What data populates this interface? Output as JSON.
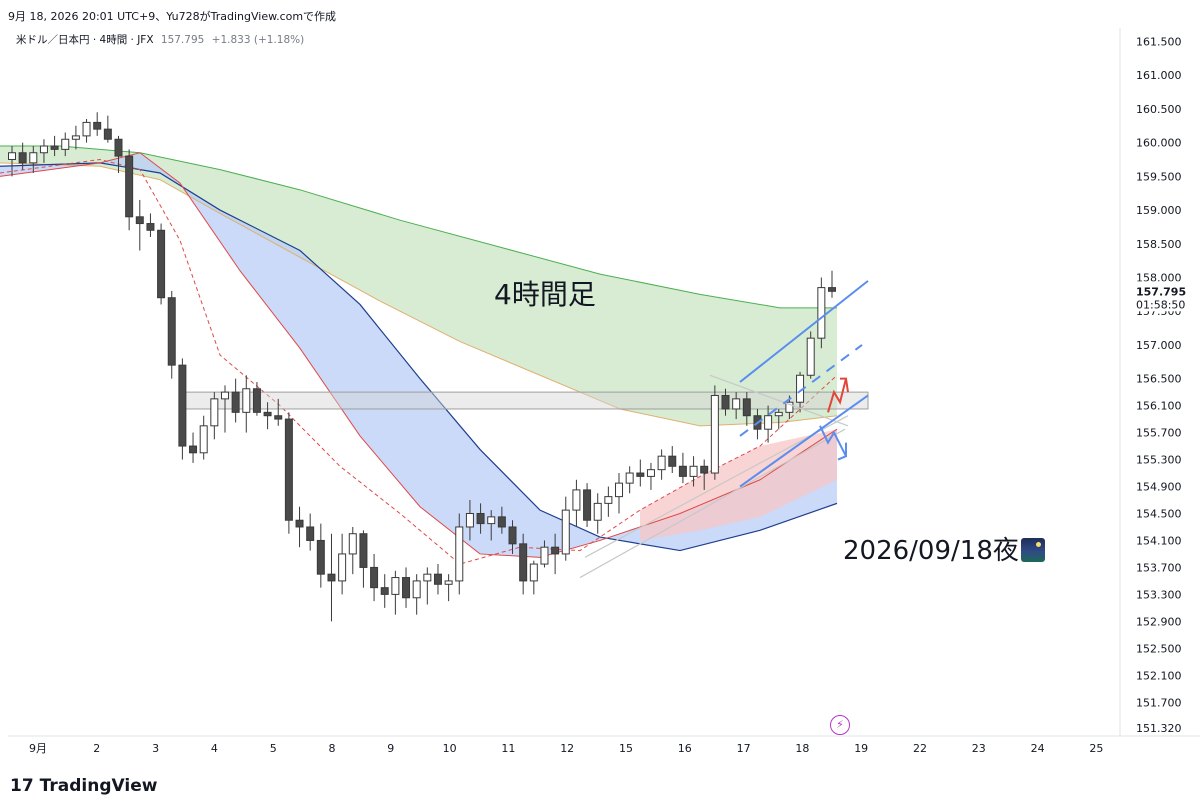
{
  "header": {
    "caption": "9月 18, 2026 20:01 UTC+9、Yu728がTradingView.comで作成"
  },
  "legend": {
    "symbol": "米ドル／日本円 · 4時間 · JFX",
    "last": "157.795",
    "change": "+1.833 (+1.18%)"
  },
  "annotations": {
    "timeframe_label": "4時間足",
    "date_label": "2026/09/18夜",
    "date_icon": "night-city-emoji"
  },
  "price_tag": {
    "price": "157.795",
    "countdown": "01:58:50"
  },
  "branding": {
    "logo_mark": "17",
    "logo_text": "TradingView",
    "flash_icon": "lightning-icon"
  },
  "colors": {
    "up_candle": "#ffffff",
    "down_candle": "#4a4a4a",
    "cloud_green": "#c9e6c4",
    "cloud_blue": "#b9cdf5",
    "cloud_red": "#f7c6c6",
    "trend_blue": "#5b8def",
    "arrow_red": "#e0453a",
    "price_line": "#131722"
  },
  "chart_data": {
    "type": "candlestick",
    "title": "",
    "y_axis_ticks": [
      "161.500",
      "161.000",
      "160.500",
      "160.000",
      "159.500",
      "159.000",
      "158.500",
      "158.000",
      "157.500",
      "157.000",
      "156.500",
      "156.100",
      "155.700",
      "155.300",
      "154.900",
      "154.500",
      "154.100",
      "153.700",
      "153.300",
      "152.900",
      "152.500",
      "152.100",
      "151.700",
      "151.320"
    ],
    "x_axis_ticks": [
      "9月",
      "2",
      "3",
      "4",
      "5",
      "8",
      "9",
      "10",
      "11",
      "12",
      "15",
      "16",
      "17",
      "18",
      "19",
      "22",
      "23",
      "24",
      "25"
    ],
    "ylim": [
      151.2,
      161.7
    ],
    "candles": [
      [
        159.75,
        159.95,
        159.5,
        159.85
      ],
      [
        159.85,
        160.0,
        159.6,
        159.7
      ],
      [
        159.7,
        159.95,
        159.55,
        159.85
      ],
      [
        159.85,
        160.05,
        159.7,
        159.95
      ],
      [
        159.95,
        160.1,
        159.8,
        159.9
      ],
      [
        159.9,
        160.15,
        159.8,
        160.05
      ],
      [
        160.05,
        160.25,
        159.9,
        160.1
      ],
      [
        160.1,
        160.35,
        160.0,
        160.3
      ],
      [
        160.3,
        160.45,
        160.1,
        160.2
      ],
      [
        160.2,
        160.4,
        160.0,
        160.05
      ],
      [
        160.05,
        160.1,
        159.55,
        159.8
      ],
      [
        159.8,
        159.9,
        158.7,
        158.9
      ],
      [
        158.9,
        159.15,
        158.4,
        158.8
      ],
      [
        158.8,
        158.95,
        158.6,
        158.7
      ],
      [
        158.7,
        158.8,
        157.6,
        157.7
      ],
      [
        157.7,
        157.8,
        156.5,
        156.7
      ],
      [
        156.7,
        156.8,
        155.3,
        155.5
      ],
      [
        155.5,
        155.7,
        155.25,
        155.4
      ],
      [
        155.4,
        155.95,
        155.3,
        155.8
      ],
      [
        155.8,
        156.3,
        155.6,
        156.2
      ],
      [
        156.2,
        156.4,
        155.7,
        156.3
      ],
      [
        156.3,
        156.5,
        155.85,
        156.0
      ],
      [
        156.0,
        156.55,
        155.7,
        156.35
      ],
      [
        156.35,
        156.45,
        155.95,
        156.0
      ],
      [
        156.0,
        156.15,
        155.75,
        155.95
      ],
      [
        155.95,
        156.2,
        155.8,
        155.9
      ],
      [
        155.9,
        156.0,
        154.2,
        154.4
      ],
      [
        154.4,
        154.6,
        154.0,
        154.3
      ],
      [
        154.3,
        154.5,
        153.95,
        154.1
      ],
      [
        154.1,
        154.35,
        153.4,
        153.6
      ],
      [
        153.6,
        154.2,
        152.9,
        153.5
      ],
      [
        153.5,
        154.2,
        153.3,
        153.9
      ],
      [
        153.9,
        154.3,
        153.6,
        154.2
      ],
      [
        154.2,
        154.25,
        153.4,
        153.7
      ],
      [
        153.7,
        153.9,
        153.2,
        153.4
      ],
      [
        153.4,
        153.6,
        153.1,
        153.3
      ],
      [
        153.3,
        153.65,
        153.0,
        153.55
      ],
      [
        153.55,
        153.7,
        153.1,
        153.25
      ],
      [
        153.25,
        153.6,
        153.0,
        153.5
      ],
      [
        153.5,
        153.7,
        153.15,
        153.6
      ],
      [
        153.6,
        153.75,
        153.3,
        153.45
      ],
      [
        153.45,
        153.6,
        153.2,
        153.5
      ],
      [
        153.5,
        154.5,
        153.3,
        154.3
      ],
      [
        154.3,
        154.7,
        154.1,
        154.5
      ],
      [
        154.5,
        154.65,
        154.2,
        154.35
      ],
      [
        154.35,
        154.55,
        154.1,
        154.45
      ],
      [
        154.45,
        154.6,
        154.2,
        154.3
      ],
      [
        154.3,
        154.4,
        153.9,
        154.05
      ],
      [
        154.05,
        154.2,
        153.3,
        153.5
      ],
      [
        153.5,
        153.8,
        153.3,
        153.75
      ],
      [
        153.75,
        154.1,
        153.7,
        154.0
      ],
      [
        154.0,
        154.2,
        153.6,
        153.9
      ],
      [
        153.9,
        154.75,
        153.8,
        154.55
      ],
      [
        154.55,
        155.0,
        154.3,
        154.85
      ],
      [
        154.85,
        154.95,
        154.3,
        154.4
      ],
      [
        154.4,
        154.8,
        154.2,
        154.65
      ],
      [
        154.65,
        154.9,
        154.45,
        154.75
      ],
      [
        154.75,
        155.1,
        154.5,
        154.95
      ],
      [
        154.95,
        155.2,
        154.8,
        155.1
      ],
      [
        155.1,
        155.3,
        154.9,
        155.05
      ],
      [
        155.05,
        155.25,
        154.85,
        155.15
      ],
      [
        155.15,
        155.45,
        155.0,
        155.35
      ],
      [
        155.35,
        155.5,
        155.1,
        155.2
      ],
      [
        155.2,
        155.4,
        154.95,
        155.05
      ],
      [
        155.05,
        155.35,
        154.9,
        155.2
      ],
      [
        155.2,
        155.3,
        154.85,
        155.1
      ],
      [
        155.1,
        156.4,
        155.0,
        156.25
      ],
      [
        156.25,
        156.35,
        155.95,
        156.05
      ],
      [
        156.05,
        156.3,
        155.9,
        156.2
      ],
      [
        156.2,
        156.3,
        155.8,
        155.95
      ],
      [
        155.95,
        156.05,
        155.6,
        155.75
      ],
      [
        155.75,
        156.1,
        155.55,
        155.95
      ],
      [
        155.95,
        156.05,
        155.75,
        156.0
      ],
      [
        156.0,
        156.25,
        155.9,
        156.15
      ],
      [
        156.15,
        156.6,
        156.0,
        156.55
      ],
      [
        156.55,
        157.2,
        156.5,
        157.1
      ],
      [
        157.1,
        158.0,
        156.95,
        157.85
      ],
      [
        157.85,
        158.1,
        157.7,
        157.795
      ]
    ],
    "series": [
      {
        "name": "",
        "color": "#4caf50",
        "values": [
          [
            0,
            159.95
          ],
          [
            60,
            159.95
          ],
          [
            140,
            159.85
          ],
          [
            220,
            159.6
          ],
          [
            300,
            159.3
          ],
          [
            400,
            158.85
          ],
          [
            500,
            158.45
          ],
          [
            600,
            158.05
          ],
          [
            700,
            157.75
          ],
          [
            780,
            157.55
          ],
          [
            837,
            157.55
          ]
        ]
      },
      {
        "name": "",
        "color": "#e0b070",
        "values": [
          [
            0,
            159.7
          ],
          [
            100,
            159.65
          ],
          [
            160,
            159.45
          ],
          [
            220,
            158.95
          ],
          [
            300,
            158.3
          ],
          [
            380,
            157.65
          ],
          [
            460,
            157.05
          ],
          [
            540,
            156.55
          ],
          [
            620,
            156.05
          ],
          [
            700,
            155.8
          ],
          [
            780,
            155.85
          ],
          [
            837,
            155.95
          ]
        ]
      },
      {
        "name": "",
        "color": "#1d3f8f",
        "values": [
          [
            0,
            159.65
          ],
          [
            100,
            159.7
          ],
          [
            160,
            159.55
          ],
          [
            220,
            159.0
          ],
          [
            300,
            158.4
          ],
          [
            360,
            157.6
          ],
          [
            420,
            156.5
          ],
          [
            480,
            155.45
          ],
          [
            540,
            154.55
          ],
          [
            600,
            154.15
          ],
          [
            680,
            153.95
          ],
          [
            760,
            154.25
          ],
          [
            837,
            154.65
          ]
        ]
      },
      {
        "name": "",
        "color": "#e04848",
        "values": [
          [
            0,
            159.5
          ],
          [
            100,
            159.7
          ],
          [
            140,
            159.85
          ],
          [
            180,
            159.4
          ],
          [
            240,
            158.1
          ],
          [
            300,
            156.95
          ],
          [
            360,
            155.65
          ],
          [
            420,
            154.6
          ],
          [
            480,
            153.9
          ],
          [
            540,
            153.85
          ],
          [
            600,
            154.1
          ],
          [
            680,
            154.5
          ],
          [
            760,
            155.0
          ],
          [
            837,
            155.75
          ]
        ]
      },
      {
        "name": "",
        "color": "#e04848",
        "values": [
          [
            0,
            159.55
          ],
          [
            100,
            159.75
          ],
          [
            140,
            159.6
          ],
          [
            180,
            158.55
          ],
          [
            220,
            156.85
          ],
          [
            280,
            156.1
          ],
          [
            340,
            155.2
          ],
          [
            400,
            154.5
          ],
          [
            460,
            153.75
          ],
          [
            520,
            154.0
          ],
          [
            580,
            153.95
          ],
          [
            640,
            154.55
          ],
          [
            700,
            155.05
          ],
          [
            760,
            155.5
          ],
          [
            837,
            156.55
          ]
        ]
      }
    ],
    "zone": {
      "low": 156.05,
      "high": 156.3
    }
  }
}
